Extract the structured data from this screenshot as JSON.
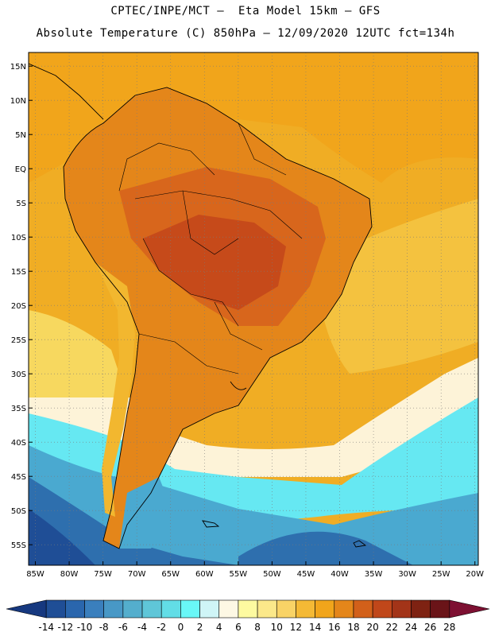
{
  "title_line1": "CPTEC/INPE/MCT –  Eta Model 15km – GFS",
  "title_line2": "Absolute Temperature (C) 850hPa – 12/09/2020 12UTC fct=134h",
  "lat_labels": [
    "15N",
    "10N",
    "5N",
    "EQ",
    "5S",
    "10S",
    "15S",
    "20S",
    "25S",
    "30S",
    "35S",
    "40S",
    "45S",
    "50S",
    "55S"
  ],
  "lon_labels": [
    "85W",
    "80W",
    "75W",
    "70W",
    "65W",
    "60W",
    "55W",
    "50W",
    "45W",
    "40W",
    "35W",
    "30W",
    "25W",
    "20W"
  ],
  "colorbar": {
    "labels": [
      "-14",
      "-12",
      "-10",
      "-8",
      "-6",
      "-4",
      "-2",
      "0",
      "2",
      "4",
      "6",
      "8",
      "10",
      "12",
      "14",
      "16",
      "18",
      "20",
      "22",
      "24",
      "26",
      "28"
    ],
    "colors": [
      "#16387f",
      "#1f4e96",
      "#2a66ad",
      "#3a7fbd",
      "#4898c6",
      "#54aecd",
      "#5fc6d8",
      "#62dde6",
      "#69f7f7",
      "#cff5f7",
      "#fdf8e4",
      "#fdfaa0",
      "#fbe88a",
      "#f9d366",
      "#f4b935",
      "#f1a51b",
      "#e4861a",
      "#d2601a",
      "#c0471a",
      "#a33418",
      "#7e2212",
      "#6a1418",
      "#7d1032"
    ]
  },
  "ocean_colors": {
    "warm_tropical": "#f0ad24",
    "pale_yellow": "#fdf6b6",
    "cream": "#fdf3d8",
    "light_cyan": "#cdf4f7",
    "cyan": "#66e8f2",
    "mid_blue": "#4aa9d0",
    "dark_blue": "#2e6fae",
    "darkest_blue": "#1f4e96"
  },
  "land_colors": {
    "hot_core": "#c64a1a",
    "hot": "#d8661c",
    "warm": "#e4861a",
    "andes": "#f2b72f"
  }
}
